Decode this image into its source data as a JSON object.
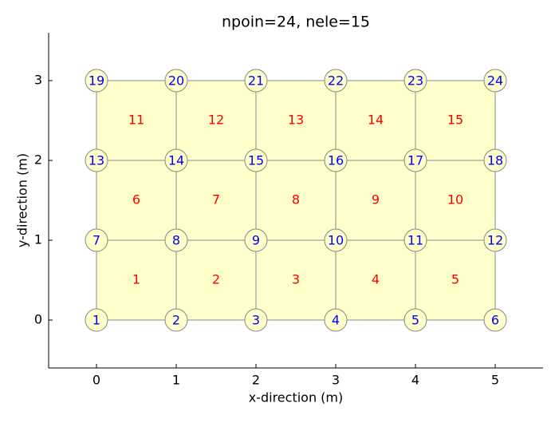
{
  "chart_data": {
    "type": "mesh",
    "title": "npoin=24, nele=15",
    "x_label": "x-direction (m)",
    "y_label": "y-direction (m)",
    "xlim": [
      -0.6,
      5.6
    ],
    "ylim": [
      -0.6,
      3.6
    ],
    "xticks": [
      0,
      1,
      2,
      3,
      4,
      5
    ],
    "yticks": [
      0,
      1,
      2,
      3
    ],
    "nodes": {
      "x": [
        0,
        1,
        2,
        3,
        4,
        5,
        0,
        1,
        2,
        3,
        4,
        5,
        0,
        1,
        2,
        3,
        4,
        5,
        0,
        1,
        2,
        3,
        4,
        5
      ],
      "y": [
        0,
        0,
        0,
        0,
        0,
        0,
        1,
        1,
        1,
        1,
        1,
        1,
        2,
        2,
        2,
        2,
        2,
        2,
        3,
        3,
        3,
        3,
        3,
        3
      ]
    },
    "node_labels": [
      1,
      2,
      3,
      4,
      5,
      6,
      7,
      8,
      9,
      10,
      11,
      12,
      13,
      14,
      15,
      16,
      17,
      18,
      19,
      20,
      21,
      22,
      23,
      24
    ],
    "elements": [
      [
        1,
        2,
        8,
        7
      ],
      [
        2,
        3,
        9,
        8
      ],
      [
        3,
        4,
        10,
        9
      ],
      [
        4,
        5,
        11,
        10
      ],
      [
        5,
        6,
        12,
        11
      ],
      [
        7,
        8,
        14,
        13
      ],
      [
        8,
        9,
        15,
        14
      ],
      [
        9,
        10,
        16,
        15
      ],
      [
        10,
        11,
        17,
        16
      ],
      [
        11,
        12,
        18,
        17
      ],
      [
        13,
        14,
        20,
        19
      ],
      [
        14,
        15,
        21,
        20
      ],
      [
        15,
        16,
        22,
        21
      ],
      [
        16,
        17,
        23,
        22
      ],
      [
        17,
        18,
        24,
        23
      ]
    ],
    "element_labels": [
      1,
      2,
      3,
      4,
      5,
      6,
      7,
      8,
      9,
      10,
      11,
      12,
      13,
      14,
      15
    ],
    "element_color": "#ffffcc",
    "edge_color": "#888888",
    "node_color": "#ffffcc",
    "node_label_color": "#0000ff",
    "element_label_color": "#ff0000"
  }
}
